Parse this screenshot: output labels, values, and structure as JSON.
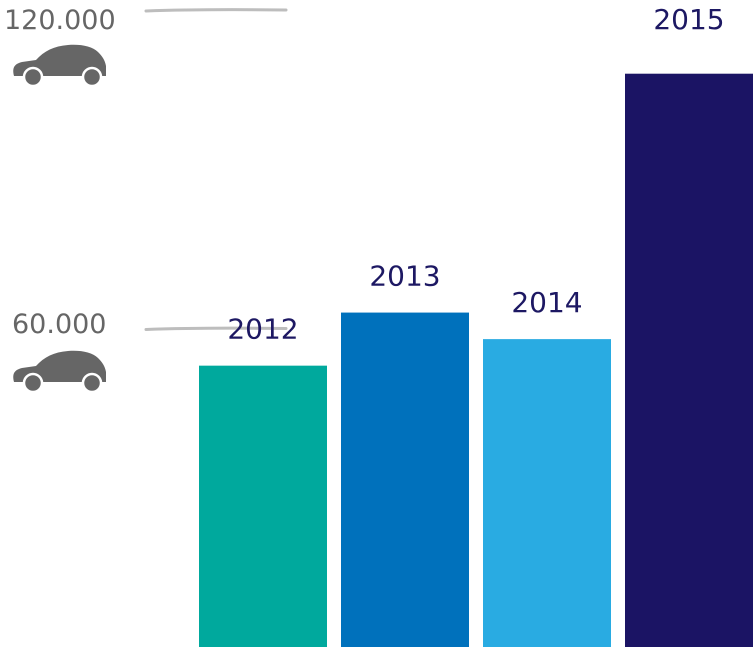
{
  "chart_data": {
    "type": "bar",
    "categories": [
      "2012",
      "2013",
      "2014",
      "2015"
    ],
    "values": [
      53000,
      63000,
      58000,
      108000
    ],
    "colors": [
      "#00a99d",
      "#0071bc",
      "#29abe2",
      "#1b1464"
    ],
    "yticks": [
      {
        "value": 60000,
        "label": "60.000",
        "icon": "car-icon"
      },
      {
        "value": 120000,
        "label": "120.000",
        "icon": "car-icon"
      }
    ],
    "ylim": [
      0,
      120000
    ],
    "title": "",
    "xlabel": "",
    "ylabel": "",
    "grid": false,
    "tick_color": "#666666",
    "gridline_color": "#bdbdbd",
    "label_color": "#1d1863"
  }
}
